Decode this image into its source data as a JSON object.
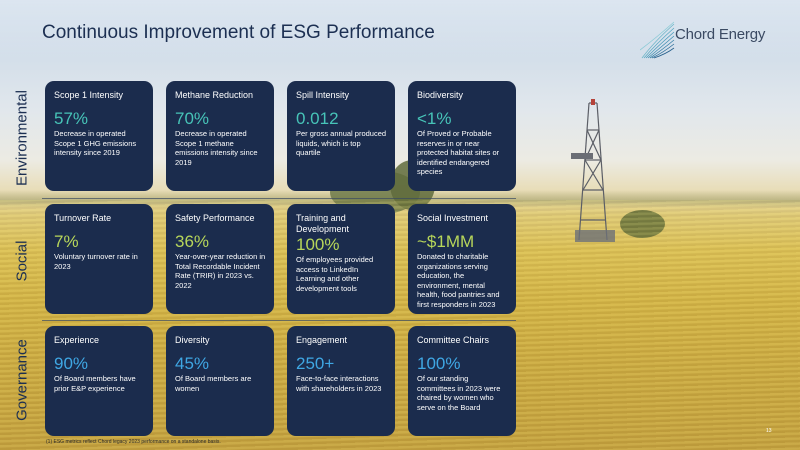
{
  "slide": {
    "title": "Continuous Improvement of ESG Performance",
    "logo_text": "Chord Energy",
    "footnote": "(1) ESG metrics reflect Chord legacy 2023 performance on a standalone basis.",
    "page_number": "13"
  },
  "rows": {
    "environmental": "Environmental",
    "social": "Social",
    "governance": "Governance"
  },
  "cards": {
    "scope1": {
      "title": "Scope 1 Intensity",
      "value": "57%",
      "desc": "Decrease in operated Scope 1 GHG emissions intensity since 2019"
    },
    "methane": {
      "title": "Methane Reduction",
      "value": "70%",
      "desc": "Decrease in operated Scope 1 methane emissions intensity since 2019"
    },
    "spill": {
      "title": "Spill Intensity",
      "value": "0.012",
      "desc": "Per gross annual produced liquids, which is top quartile"
    },
    "biodiversity": {
      "title": "Biodiversity",
      "value": "<1%",
      "desc": "Of Proved or Probable reserves in or near protected habitat sites or identified endangered species"
    },
    "turnover": {
      "title": "Turnover Rate",
      "value": "7%",
      "desc": "Voluntary turnover rate in 2023"
    },
    "safety": {
      "title": "Safety Performance",
      "value": "36%",
      "desc": "Year-over-year reduction in Total Recordable Incident Rate (TRIR) in 2023 vs. 2022"
    },
    "training": {
      "title": "Training and Development",
      "value": "100%",
      "desc": "Of employees provided access to LinkedIn Learning and other development tools"
    },
    "investment": {
      "title": "Social Investment",
      "value": "~$1MM",
      "desc": "Donated to charitable organizations serving education, the environment, mental health, food pantries and first responders in 2023"
    },
    "experience": {
      "title": "Experience",
      "value": "90%",
      "desc": "Of Board members have prior E&P experience"
    },
    "diversity": {
      "title": "Diversity",
      "value": "45%",
      "desc": "Of Board members are women"
    },
    "engagement": {
      "title": "Engagement",
      "value": "250+",
      "desc": "Face-to-face interactions with shareholders in 2023"
    },
    "chairs": {
      "title": "Committee Chairs",
      "value": "100%",
      "desc": "Of our standing committees in 2023 were chaired by women who serve on the Board"
    }
  },
  "colors": {
    "card_bg": "#1b2c4d",
    "environmental_accent": "#47c4b8",
    "social_accent": "#b7d65a",
    "governance_accent": "#3fa7e4",
    "title": "#1c2f52"
  }
}
